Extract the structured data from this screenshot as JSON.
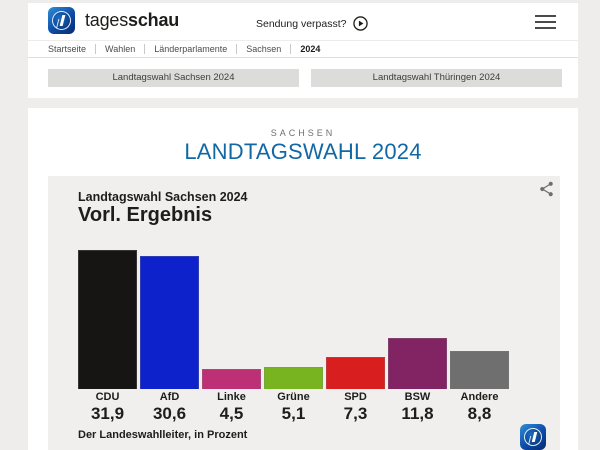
{
  "header": {
    "brand": {
      "regular": "tages",
      "bold": "schau"
    },
    "missed_broadcast": "Sendung verpasst?"
  },
  "breadcrumb": {
    "items": [
      "Startseite",
      "Wahlen",
      "Länderparlamente",
      "Sachsen",
      "2024"
    ]
  },
  "election_tabs": [
    {
      "label": "Landtagswahl Sachsen 2024"
    },
    {
      "label": "Landtagswahl Thüringen 2024"
    }
  ],
  "page": {
    "kicker": "SACHSEN",
    "title": "LANDTAGSWAHL 2024"
  },
  "chart_data": {
    "type": "bar",
    "title": "Landtagswahl Sachsen 2024",
    "subtitle": "Vorl. Ergebnis",
    "source": "Der Landeswahlleiter, in Prozent",
    "unit": "Prozent",
    "categories": [
      "CDU",
      "AfD",
      "Linke",
      "Grüne",
      "SPD",
      "BSW",
      "Andere"
    ],
    "values": [
      31.9,
      30.6,
      4.5,
      5.1,
      7.3,
      11.8,
      8.8
    ],
    "value_labels": [
      "31,9",
      "30,6",
      "4,5",
      "5,1",
      "7,3",
      "11,8",
      "8,8"
    ],
    "bar_colors": [
      "#161513",
      "#0e22cc",
      "#be3075",
      "#77b41f",
      "#d81e1e",
      "#822363",
      "#6f6f6f"
    ],
    "ylim": [
      0,
      33
    ],
    "grid": false,
    "legend": false
  },
  "colors": {
    "accent_blue": "#1268a5",
    "brand_blue": "#0c4aa6",
    "card_bg": "#f0efed"
  }
}
